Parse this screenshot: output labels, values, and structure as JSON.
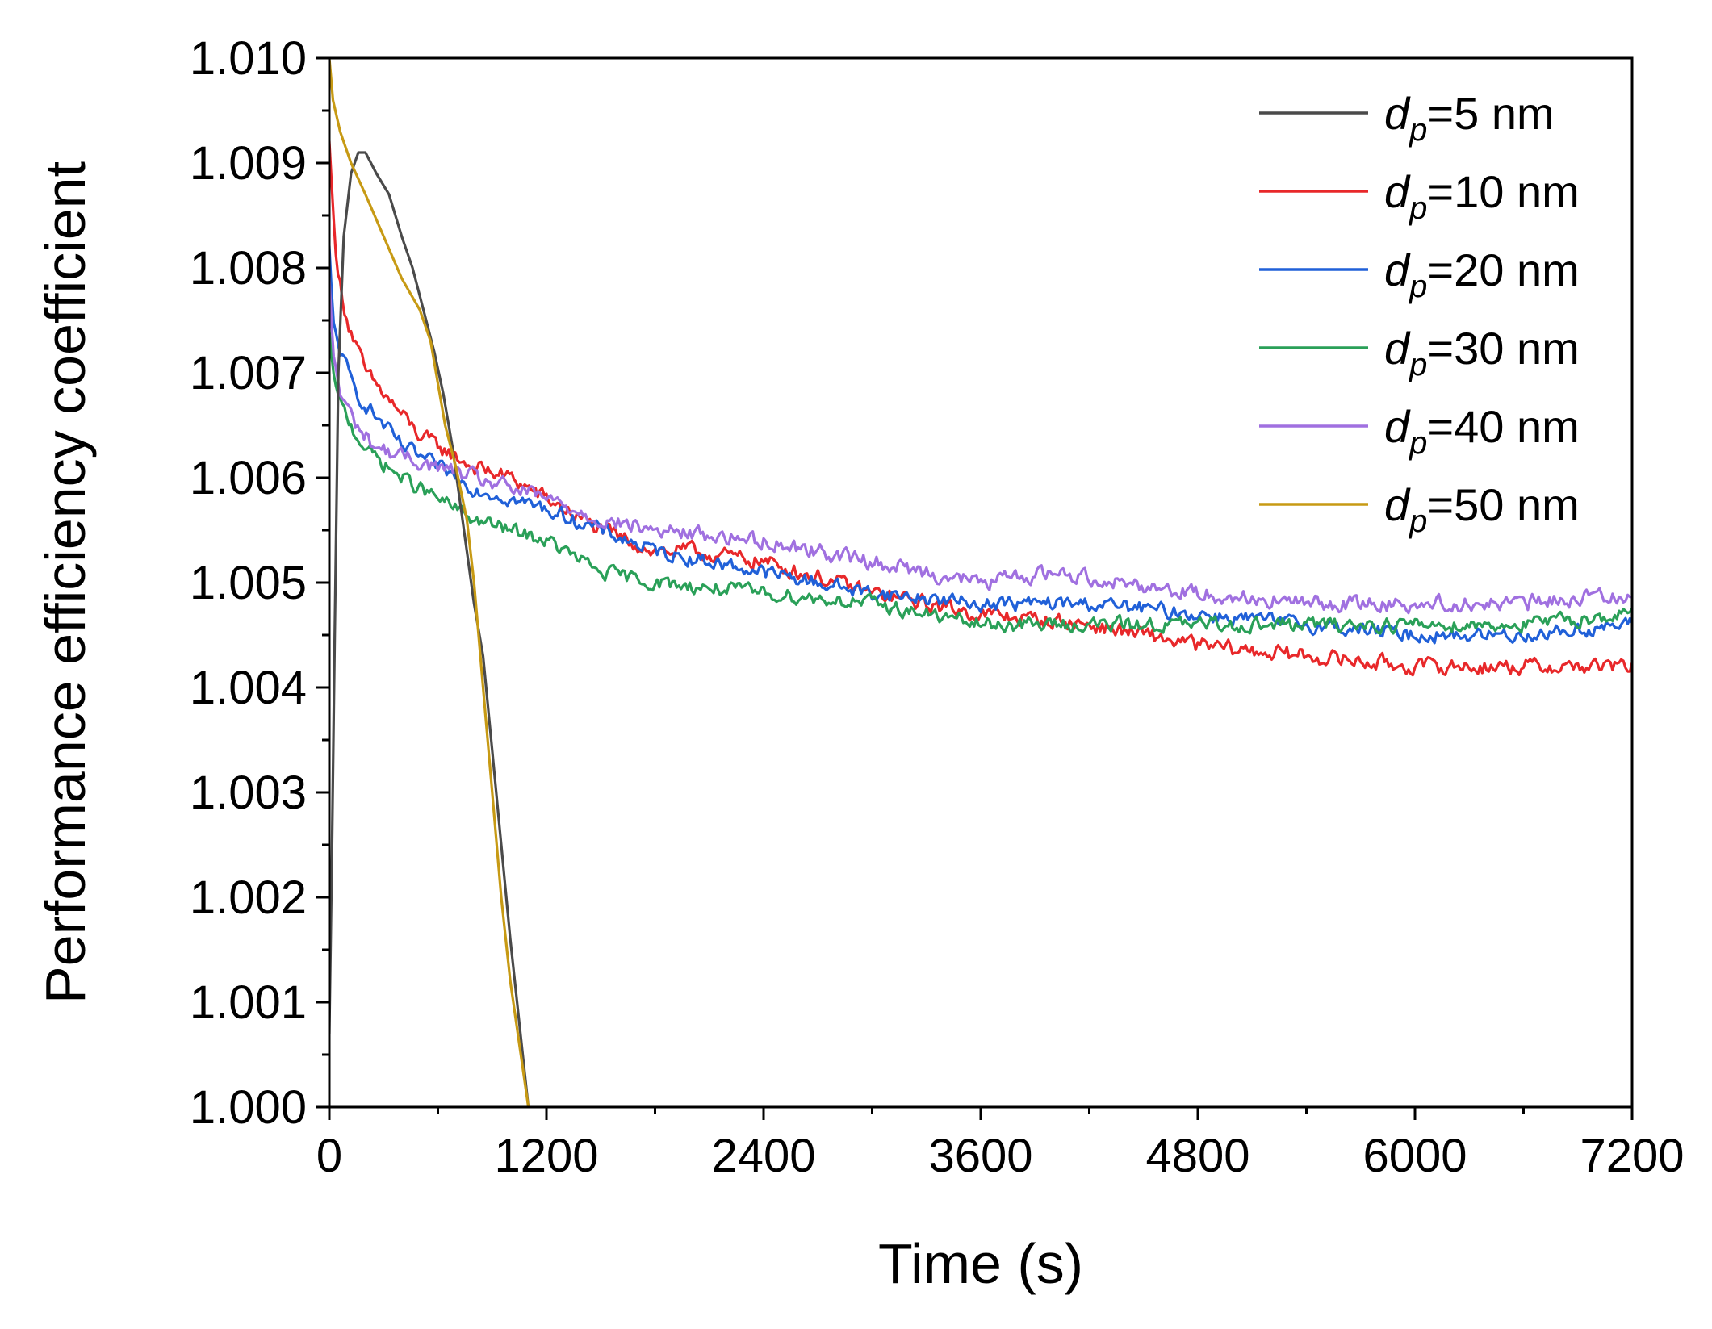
{
  "chart_data": {
    "type": "line",
    "title": "",
    "xlabel": "Time (s)",
    "ylabel": "Performance efficiency coefficient",
    "xlim": [
      0,
      7200
    ],
    "ylim": [
      1.0,
      1.01
    ],
    "x_ticks": [
      0,
      1200,
      2400,
      3600,
      4800,
      6000,
      7200
    ],
    "x_tick_labels": [
      "0",
      "1200",
      "2400",
      "3600",
      "4800",
      "6000",
      "7200"
    ],
    "y_ticks": [
      1.0,
      1.001,
      1.002,
      1.003,
      1.004,
      1.005,
      1.006,
      1.007,
      1.008,
      1.009,
      1.01
    ],
    "y_tick_labels": [
      "1.000",
      "1.001",
      "1.002",
      "1.003",
      "1.004",
      "1.005",
      "1.006",
      "1.007",
      "1.008",
      "1.009",
      "1.010"
    ],
    "legend_position": "top-right",
    "series": [
      {
        "name": "dp=5 nm",
        "label_symbol": "d",
        "label_subscript": "p",
        "label_rest": "=5 nm",
        "color": "#4a4a4a",
        "noise": 0,
        "x": [
          0,
          15,
          30,
          50,
          80,
          120,
          160,
          200,
          260,
          330,
          400,
          460,
          520,
          580,
          630,
          680,
          720,
          760,
          800,
          850,
          900,
          950,
          1000,
          1050,
          1100
        ],
        "y": [
          1.0007,
          1.0025,
          1.0045,
          1.007,
          1.0083,
          1.0089,
          1.0091,
          1.0091,
          1.0089,
          1.0087,
          1.0083,
          1.008,
          1.0076,
          1.0072,
          1.0068,
          1.0063,
          1.0058,
          1.0053,
          1.0048,
          1.0043,
          1.0034,
          1.0025,
          1.0016,
          1.0008,
          1.0
        ]
      },
      {
        "name": "dp=10 nm",
        "label_symbol": "d",
        "label_subscript": "p",
        "label_rest": "=10 nm",
        "color": "#e8282a",
        "noise": 0.00012,
        "x": [
          0,
          40,
          100,
          200,
          300,
          400,
          500,
          600,
          800,
          1000,
          1200,
          1500,
          1800,
          2000,
          2400,
          3000,
          3600,
          4200,
          4800,
          5400,
          6000,
          6600,
          7200
        ],
        "y": [
          1.0092,
          1.008,
          1.0075,
          1.007,
          1.0068,
          1.0066,
          1.0064,
          1.0063,
          1.0061,
          1.006,
          1.0058,
          1.0055,
          1.0053,
          1.0053,
          1.0052,
          1.0049,
          1.0047,
          1.0046,
          1.0044,
          1.0043,
          1.0042,
          1.0042,
          1.0042
        ]
      },
      {
        "name": "dp=20 nm",
        "label_symbol": "d",
        "label_subscript": "p",
        "label_rest": "=20 nm",
        "color": "#2060d8",
        "noise": 0.00011,
        "x": [
          0,
          20,
          60,
          150,
          250,
          400,
          600,
          800,
          1000,
          1200,
          1500,
          1800,
          2400,
          3000,
          3600,
          4200,
          4800,
          5400,
          6000,
          6600,
          7200
        ],
        "y": [
          1.0082,
          1.0075,
          1.0072,
          1.0068,
          1.0066,
          1.0063,
          1.0061,
          1.0059,
          1.0058,
          1.0057,
          1.0055,
          1.0053,
          1.0051,
          1.0049,
          1.0048,
          1.0048,
          1.0047,
          1.0046,
          1.0045,
          1.0045,
          1.0046
        ]
      },
      {
        "name": "dp=30 nm",
        "label_symbol": "d",
        "label_subscript": "p",
        "label_rest": "=30 nm",
        "color": "#2aa058",
        "noise": 0.00011,
        "x": [
          0,
          20,
          60,
          150,
          250,
          400,
          600,
          800,
          1000,
          1200,
          1500,
          1800,
          2400,
          3000,
          3600,
          4200,
          4800,
          5400,
          6000,
          6600,
          7200
        ],
        "y": [
          1.0074,
          1.007,
          1.0067,
          1.0064,
          1.0062,
          1.006,
          1.0058,
          1.0056,
          1.0055,
          1.0054,
          1.0051,
          1.005,
          1.0049,
          1.0048,
          1.0046,
          1.0046,
          1.0046,
          1.0046,
          1.0046,
          1.0046,
          1.0047
        ]
      },
      {
        "name": "dp=40 nm",
        "label_symbol": "d",
        "label_subscript": "p",
        "label_rest": "=40 nm",
        "color": "#a070e0",
        "noise": 0.00012,
        "x": [
          0,
          20,
          60,
          150,
          250,
          400,
          600,
          800,
          1000,
          1200,
          1500,
          1800,
          2400,
          3000,
          3600,
          4000,
          4800,
          5400,
          6000,
          6600,
          7200
        ],
        "y": [
          1.0079,
          1.0072,
          1.0068,
          1.0065,
          1.0063,
          1.0062,
          1.0061,
          1.006,
          1.0059,
          1.0058,
          1.0056,
          1.0055,
          1.0054,
          1.0052,
          1.005,
          1.0051,
          1.0049,
          1.0048,
          1.0048,
          1.0048,
          1.0049
        ]
      },
      {
        "name": "dp=50 nm",
        "label_symbol": "d",
        "label_subscript": "p",
        "label_rest": "=50 nm",
        "color": "#c79a14",
        "noise": 0,
        "x": [
          0,
          20,
          60,
          120,
          200,
          300,
          400,
          500,
          560,
          600,
          640,
          700,
          760,
          800,
          850,
          900,
          950,
          1000,
          1050,
          1100
        ],
        "y": [
          1.01,
          1.0096,
          1.0093,
          1.009,
          1.0087,
          1.0083,
          1.0079,
          1.0076,
          1.0073,
          1.0069,
          1.0065,
          1.0061,
          1.0056,
          1.005,
          1.004,
          1.003,
          1.002,
          1.0012,
          1.0006,
          1.0
        ]
      }
    ]
  }
}
